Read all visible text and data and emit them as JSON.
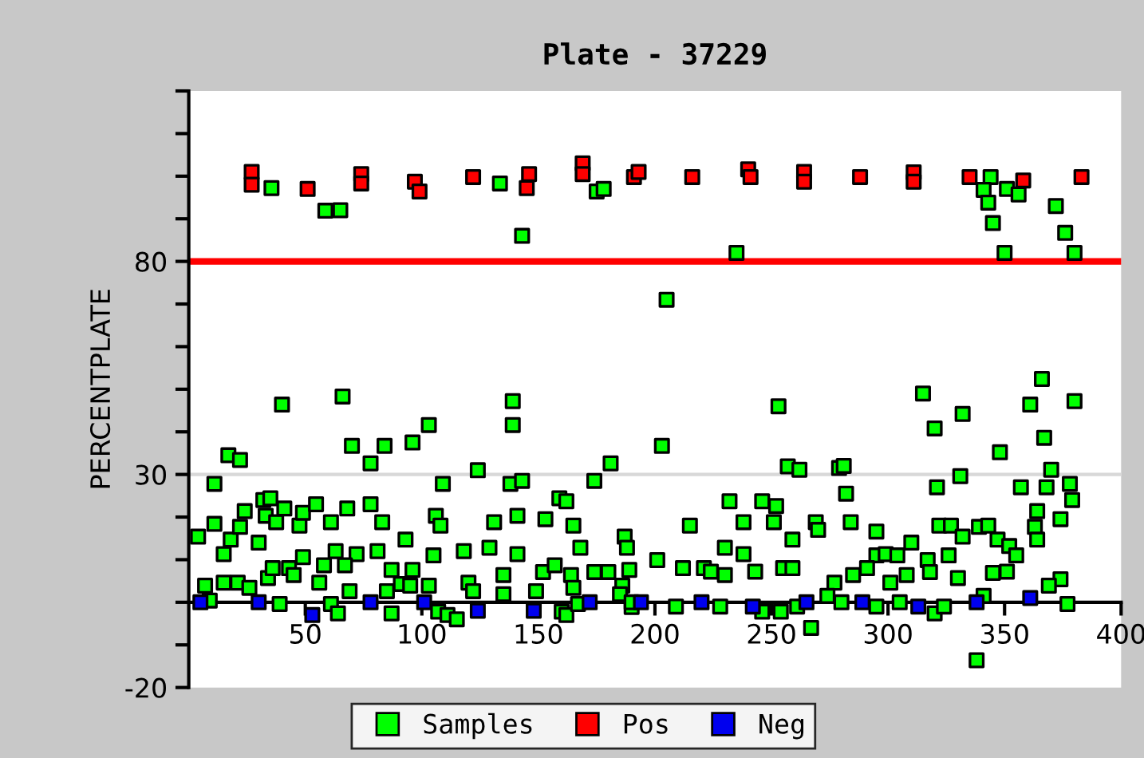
{
  "chart_data": {
    "type": "scatter",
    "title": "Plate - 37229",
    "ylabel": "PERCENTPLATE",
    "xlim": [
      0,
      400
    ],
    "xticks": [
      50,
      100,
      150,
      200,
      250,
      300,
      350,
      400
    ],
    "ylim": [
      -20,
      120
    ],
    "yticks": [
      -20,
      {
        "value": -10,
        "label": null
      },
      {
        "value": 0,
        "label": null
      },
      {
        "value": 10,
        "label": null
      },
      {
        "value": 20,
        "label": null
      },
      30,
      {
        "value": 40,
        "label": null
      },
      {
        "value": 50,
        "label": null
      },
      {
        "value": 60,
        "label": null
      },
      {
        "value": 70,
        "label": null
      },
      80,
      {
        "value": 90,
        "label": null
      },
      {
        "value": 100,
        "label": null
      },
      {
        "value": 110,
        "label": null
      },
      {
        "value": 120,
        "label": null
      }
    ],
    "marker": "square",
    "legend": "bottom",
    "grid": false,
    "ref_lines": [
      {
        "axis": "y",
        "value": 30,
        "color": "#d8d8d8"
      },
      {
        "axis": "y",
        "value": 80,
        "color": "#ff0000"
      }
    ],
    "series": [
      {
        "name": "Samples",
        "color": "#00ff00",
        "x": [
          35.5,
          58.6,
          65,
          143,
          133.5,
          175,
          178,
          235,
          344,
          341,
          343,
          345,
          350,
          351,
          356,
          372,
          376,
          380,
          205,
          40,
          66,
          139,
          139,
          103,
          96,
          84,
          70,
          78,
          17,
          22,
          11,
          109,
          124,
          138,
          143,
          174,
          181,
          4,
          11,
          15,
          18,
          22,
          24,
          30,
          32,
          35,
          33,
          37.5,
          41,
          47.5,
          49,
          54.6,
          61,
          68,
          63,
          72,
          78,
          83,
          81,
          93,
          106,
          108,
          105,
          118,
          129,
          131,
          141,
          141,
          153,
          159,
          162,
          165,
          168,
          187,
          188,
          7,
          15,
          21,
          26,
          34,
          36,
          43,
          45,
          49,
          56,
          58,
          67,
          69,
          87,
          91,
          96,
          95,
          103,
          120,
          135,
          152,
          157,
          164,
          165,
          174,
          180,
          186,
          189,
          9,
          39,
          61,
          64,
          85,
          87,
          107,
          111,
          115,
          122,
          135,
          149,
          160,
          162,
          167,
          185,
          190,
          203,
          253,
          257,
          262,
          279,
          281,
          282,
          315,
          320,
          332,
          331,
          321,
          348,
          357,
          361,
          366,
          367,
          380,
          370,
          368,
          378,
          379,
          374,
          364,
          363,
          364,
          232,
          246,
          252,
          215,
          238,
          251,
          259,
          269,
          270,
          284,
          295,
          310,
          322,
          327,
          332,
          339,
          343,
          347,
          352,
          355,
          351,
          345,
          230,
          238,
          201,
          255,
          259,
          295,
          299,
          304,
          317,
          326,
          212,
          221,
          224,
          230,
          243,
          277,
          285,
          291,
          301,
          308,
          318,
          330,
          374,
          369,
          190,
          209,
          228,
          246,
          254,
          261,
          274,
          280,
          295,
          305,
          320,
          324,
          341,
          267,
          338,
          377
        ],
        "values": [
          97.2,
          91.9,
          92,
          86,
          98.3,
          96.4,
          97,
          82,
          99.8,
          96.8,
          93.8,
          89,
          82,
          97,
          95.7,
          93,
          86.7,
          82,
          71,
          46.4,
          48.3,
          47.2,
          41.6,
          41.6,
          37.5,
          36.7,
          36.7,
          32.6,
          34.5,
          33.4,
          27.8,
          27.8,
          31,
          27.8,
          28.5,
          28.5,
          32.6,
          15.4,
          18.4,
          11.3,
          14.7,
          17.7,
          21.4,
          14,
          24,
          24.4,
          20.3,
          18.8,
          22,
          18,
          21,
          23,
          18.8,
          22,
          12,
          11.3,
          23,
          18.8,
          12,
          14.7,
          20.3,
          18,
          11,
          12,
          12.8,
          18.8,
          20.3,
          11.3,
          19.5,
          24.4,
          23.7,
          18,
          12.8,
          15.4,
          12.8,
          3.9,
          4.6,
          4.6,
          3.4,
          5.7,
          8,
          8,
          6.4,
          10.6,
          4.6,
          8.7,
          8.7,
          2.6,
          7.6,
          4.3,
          7.6,
          3.9,
          3.9,
          4.6,
          6.4,
          7.1,
          8.7,
          6.4,
          3.4,
          7.1,
          7.1,
          3.9,
          7.6,
          0.4,
          -0.4,
          -0.4,
          -2.6,
          2.6,
          -2.6,
          -2.2,
          -3,
          -4,
          2.6,
          1.9,
          2.6,
          -2.2,
          -3,
          -0.4,
          1.9,
          -1.1,
          36.7,
          46,
          31.9,
          31.1,
          31.5,
          32,
          25.5,
          49,
          40.8,
          44.2,
          29.6,
          27,
          35.2,
          27,
          46.4,
          52.4,
          38.6,
          47.2,
          31.1,
          27,
          27.8,
          24,
          19.5,
          21.4,
          17.7,
          14.7,
          23.7,
          23.7,
          22.6,
          18,
          18.8,
          18.8,
          14.7,
          18.8,
          17,
          18.8,
          16.6,
          14,
          18,
          18,
          15.4,
          17.7,
          18,
          14.7,
          13.2,
          11,
          7.2,
          6.9,
          12.8,
          11.3,
          9.9,
          8,
          8,
          11,
          11.3,
          11,
          9.9,
          11,
          8,
          8,
          7.2,
          6.4,
          7.2,
          4.6,
          6.4,
          8,
          4.6,
          6.4,
          7.1,
          5.7,
          5.4,
          3.9,
          0,
          -1,
          -1,
          -2.2,
          -2.2,
          -1,
          1.5,
          0,
          -1,
          0,
          -2.6,
          -1,
          1.5,
          -6,
          -13.6,
          -0.4
        ]
      },
      {
        "name": "Pos",
        "color": "#ff0000",
        "x": [
          27,
          27,
          51,
          74,
          74,
          97,
          99,
          122,
          145,
          146,
          169,
          169,
          191,
          193,
          216,
          240,
          241,
          264,
          264,
          288,
          311,
          311,
          335,
          358,
          383
        ],
        "values": [
          101,
          98,
          97,
          100.5,
          98.3,
          98.7,
          96.4,
          99.8,
          97.2,
          100.5,
          103,
          100.5,
          99.8,
          101,
          99.8,
          101.6,
          99.8,
          101,
          98.7,
          99.8,
          100.9,
          98.7,
          99.8,
          99,
          99.8
        ]
      },
      {
        "name": "Neg",
        "color": "#0000ee",
        "x": [
          5,
          30,
          53,
          78,
          101,
          124,
          148,
          172,
          194,
          220,
          242,
          265,
          289,
          313,
          338,
          361
        ],
        "values": [
          0,
          0,
          -3,
          0,
          0,
          -2,
          -2,
          0,
          0,
          0,
          -1,
          0,
          0,
          -1,
          0,
          1
        ]
      }
    ]
  }
}
